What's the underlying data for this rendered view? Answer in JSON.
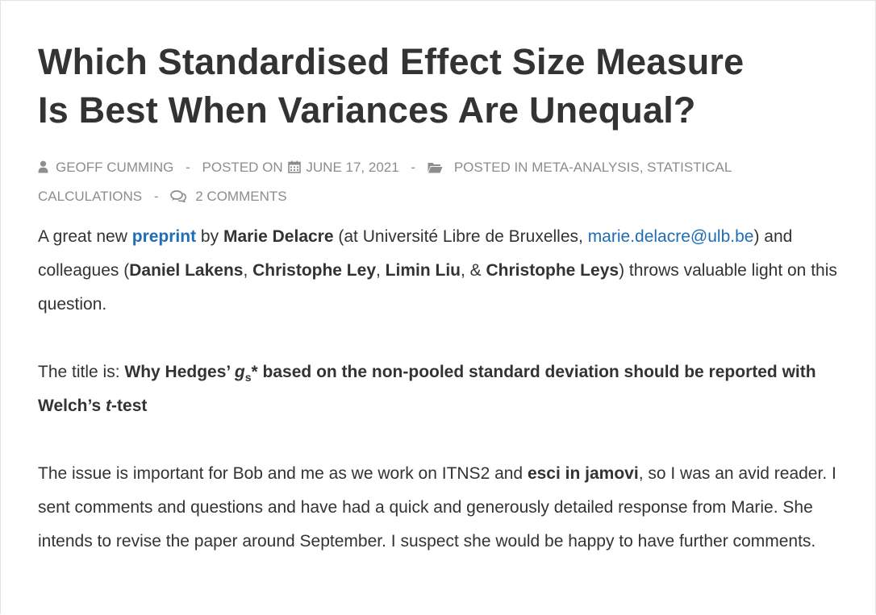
{
  "post": {
    "title_line1": "Which Standardised Effect Size Measure",
    "title_line2": "Is Best When Variances Are Unequal?"
  },
  "meta": {
    "author": "GEOFF CUMMING",
    "posted_on_label": "POSTED ON",
    "date": "JUNE 17, 2021",
    "posted_in_label": "POSTED IN",
    "category_1": "META-ANALYSIS",
    "category_2": "STATISTICAL CALCULATIONS",
    "comments": "2 COMMENTS",
    "separator": "-",
    "comma": ","
  },
  "body": {
    "p1": {
      "t1": "A great new ",
      "link_preprint": "preprint",
      "t2": " by ",
      "author_main": "Marie Delacre",
      "t3": " (at Université Libre de Bruxelles, ",
      "email": "marie.delacre@ulb.be",
      "t4": ") and colleagues (",
      "co1": "Daniel Lakens",
      "c1": ", ",
      "co2": "Christophe Ley",
      "c2": ", ",
      "co3": "Limin Liu",
      "c3": ", & ",
      "co4": "Christophe Leys",
      "t5": ") throws valuable light on this question."
    },
    "p2": {
      "t1": "The title is: ",
      "b1": "Why Hedges’ ",
      "g": "g",
      "sub": "s",
      "b2": "* based on the non-pooled standard deviation should be reported with Welch’s ",
      "t": "t",
      "b3": "-test"
    },
    "p3": {
      "t1": "The issue is important for Bob and me as we work on ITNS2 and ",
      "b1": "esci in jamovi",
      "t2": ", so I was an avid reader. I sent comments and questions and have had a quick and generously detailed response from Marie. She intends to revise the paper around September. I suspect she would be happy to have further comments."
    }
  },
  "icons": {
    "author": "user-icon",
    "date": "calendar-icon",
    "category": "folder-open-icon",
    "comments": "comments-icon"
  },
  "colors": {
    "text": "#333333",
    "meta": "#8d8d8d",
    "link": "#1e6db5"
  }
}
